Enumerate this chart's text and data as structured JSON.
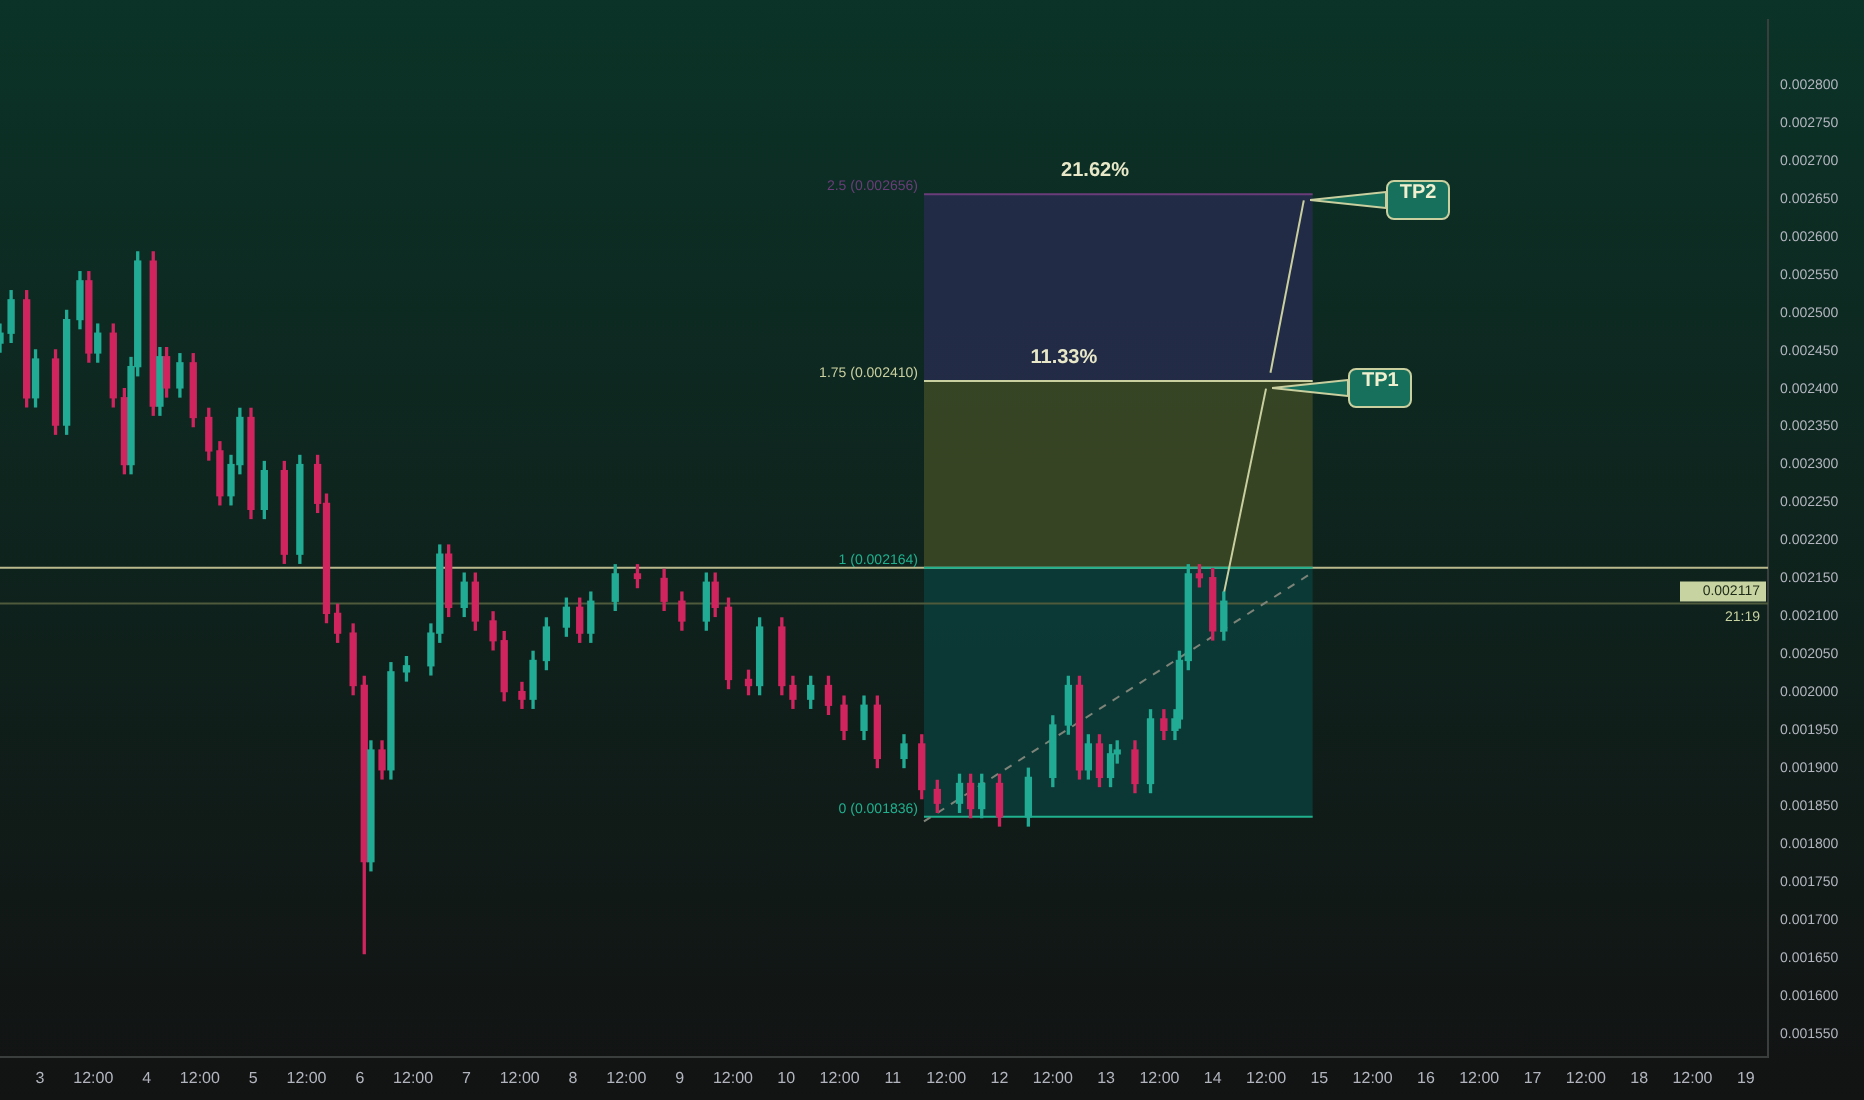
{
  "chart_data": {
    "type": "candlestick",
    "x": [
      "--07-02T15:00",
      "--07-02T17:30",
      "--07-02T21:00",
      "--07-02T23:00",
      "--07-03T03:30",
      "--07-03T06:00",
      "--07-03T09:00",
      "--07-03T11:00",
      "--07-03T13:00",
      "--07-03T16:30",
      "--07-03T19:00",
      "--07-03T20:30",
      "--07-03T22:00",
      "--07-04T01:30",
      "--07-04T03:00",
      "--07-04T04:30",
      "--07-04T07:30",
      "--07-04T10:30",
      "--07-04T14:00",
      "--07-04T16:30",
      "--07-04T19:00",
      "--07-04T21:00",
      "--07-04T23:30",
      "--07-05T02:30",
      "--07-05T07:00",
      "--07-05T10:30",
      "--07-05T14:30",
      "--07-05T16:30",
      "--07-05T19:00",
      "--07-05T22:30",
      "--07-06T01:00",
      "--07-06T02:30",
      "--07-06T05:00",
      "--07-06T07:00",
      "--07-06T10:30",
      "--07-06T16:00",
      "--07-06T18:00",
      "--07-06T20:00",
      "--07-06T23:30",
      "--07-07T02:00",
      "--07-07T06:00",
      "--07-07T08:30",
      "--07-07T12:30",
      "--07-07T15:00",
      "--07-07T18:00",
      "--07-07T22:30",
      "--07-08T01:30",
      "--07-08T04:00",
      "--07-08T09:30",
      "--07-08T14:30",
      "--07-08T20:30",
      "--07-09T00:30",
      "--07-09T06:00",
      "--07-09T08:00",
      "--07-09T11:00",
      "--07-09T15:30",
      "--07-09T18:00",
      "--07-09T23:00",
      "--07-10T01:30",
      "--07-10T05:30",
      "--07-10T09:30",
      "--07-10T13:00",
      "--07-10T17:30",
      "--07-10T20:30",
      "--07-11T02:30",
      "--07-11T06:30",
      "--07-11T10:00",
      "--07-11T15:00",
      "--07-11T17:30",
      "--07-11T20:00",
      "--07-12T00:00",
      "--07-12T06:30",
      "--07-12T12:00",
      "--07-12T15:30",
      "--07-12T18:00",
      "--07-12T20:00",
      "--07-12T22:30",
      "--07-13T01:00",
      "--07-13T02:30",
      "--07-13T06:30",
      "--07-13T10:00",
      "--07-13T13:00",
      "--07-13T15:30",
      "--07-13T16:30",
      "--07-13T18:30",
      "--07-13T21:00",
      "--07-14T00:00",
      "--07-14T02:30"
    ],
    "ohlc": [
      [
        0.00246,
        0.002485,
        0.002448,
        0.002473
      ],
      [
        0.002473,
        0.002529,
        0.002461,
        0.002517
      ],
      [
        0.002517,
        0.002529,
        0.002376,
        0.002388
      ],
      [
        0.002388,
        0.002451,
        0.002376,
        0.002439
      ],
      [
        0.002439,
        0.002451,
        0.00234,
        0.002352
      ],
      [
        0.002352,
        0.002503,
        0.00234,
        0.002491
      ],
      [
        0.002491,
        0.002554,
        0.002479,
        0.002542
      ],
      [
        0.002542,
        0.002554,
        0.002435,
        0.002447
      ],
      [
        0.002447,
        0.002485,
        0.002435,
        0.002473
      ],
      [
        0.002473,
        0.002485,
        0.002376,
        0.002388
      ],
      [
        0.002388,
        0.0024,
        0.002288,
        0.0023
      ],
      [
        0.0023,
        0.002441,
        0.002288,
        0.002429
      ],
      [
        0.002429,
        0.00258,
        0.002417,
        0.002568
      ],
      [
        0.002568,
        0.00258,
        0.002365,
        0.002377
      ],
      [
        0.002377,
        0.002454,
        0.002365,
        0.002442
      ],
      [
        0.002442,
        0.002454,
        0.002389,
        0.002401
      ],
      [
        0.002401,
        0.002446,
        0.002389,
        0.002434
      ],
      [
        0.002434,
        0.002446,
        0.00235,
        0.002362
      ],
      [
        0.002362,
        0.002374,
        0.002306,
        0.002318
      ],
      [
        0.002318,
        0.00233,
        0.002247,
        0.002259
      ],
      [
        0.002259,
        0.002312,
        0.002247,
        0.0023
      ],
      [
        0.0023,
        0.002374,
        0.002288,
        0.002362
      ],
      [
        0.002362,
        0.002374,
        0.002229,
        0.002241
      ],
      [
        0.002241,
        0.002304,
        0.002229,
        0.002292
      ],
      [
        0.002292,
        0.002304,
        0.00217,
        0.002182
      ],
      [
        0.002182,
        0.002312,
        0.00217,
        0.0023
      ],
      [
        0.0023,
        0.002312,
        0.002237,
        0.002249
      ],
      [
        0.002249,
        0.002261,
        0.002092,
        0.002104
      ],
      [
        0.002104,
        0.002116,
        0.002066,
        0.002078
      ],
      [
        0.002078,
        0.00209,
        0.001997,
        0.002009
      ],
      [
        0.002009,
        0.002021,
        0.001656,
        0.001777
      ],
      [
        0.001777,
        0.001936,
        0.001765,
        0.001924
      ],
      [
        0.001924,
        0.001936,
        0.001886,
        0.001898
      ],
      [
        0.001898,
        0.002039,
        0.001886,
        0.002027
      ],
      [
        0.002027,
        0.002047,
        0.002015,
        0.002035
      ],
      [
        0.002035,
        0.00209,
        0.002023,
        0.002078
      ],
      [
        0.002078,
        0.002194,
        0.002066,
        0.002182
      ],
      [
        0.002182,
        0.002194,
        0.0021,
        0.002112
      ],
      [
        0.002112,
        0.002157,
        0.0021,
        0.002145
      ],
      [
        0.002145,
        0.002157,
        0.002082,
        0.002094
      ],
      [
        0.002094,
        0.002106,
        0.002056,
        0.002068
      ],
      [
        0.002068,
        0.00208,
        0.001989,
        0.002001
      ],
      [
        0.002001,
        0.002013,
        0.001979,
        0.001991
      ],
      [
        0.001991,
        0.002054,
        0.001979,
        0.002042
      ],
      [
        0.002042,
        0.002098,
        0.00203,
        0.002086
      ],
      [
        0.002086,
        0.002124,
        0.002074,
        0.002112
      ],
      [
        0.002112,
        0.002124,
        0.002066,
        0.002078
      ],
      [
        0.002078,
        0.002132,
        0.002066,
        0.00212
      ],
      [
        0.00212,
        0.002168,
        0.002108,
        0.002156
      ],
      [
        0.002156,
        0.002168,
        0.002138,
        0.00215
      ],
      [
        0.00215,
        0.002162,
        0.002108,
        0.00212
      ],
      [
        0.00212,
        0.002132,
        0.002082,
        0.002094
      ],
      [
        0.002094,
        0.002157,
        0.002082,
        0.002145
      ],
      [
        0.002145,
        0.002157,
        0.0021,
        0.002112
      ],
      [
        0.002112,
        0.002124,
        0.002005,
        0.002017
      ],
      [
        0.002017,
        0.002029,
        0.001997,
        0.002009
      ],
      [
        0.002009,
        0.002098,
        0.001997,
        0.002086
      ],
      [
        0.002086,
        0.002098,
        0.001997,
        0.002009
      ],
      [
        0.002009,
        0.002021,
        0.001979,
        0.001991
      ],
      [
        0.001991,
        0.002021,
        0.001979,
        0.002009
      ],
      [
        0.002009,
        0.002021,
        0.001971,
        0.001983
      ],
      [
        0.001983,
        0.001995,
        0.001938,
        0.00195
      ],
      [
        0.00195,
        0.001995,
        0.001938,
        0.001983
      ],
      [
        0.001983,
        0.001995,
        0.001901,
        0.001913
      ],
      [
        0.001913,
        0.001944,
        0.001901,
        0.001932
      ],
      [
        0.001932,
        0.001944,
        0.00186,
        0.001872
      ],
      [
        0.001872,
        0.001884,
        0.001842,
        0.001854
      ],
      [
        0.001854,
        0.001892,
        0.001842,
        0.00188
      ],
      [
        0.00188,
        0.001892,
        0.001835,
        0.001847
      ],
      [
        0.001847,
        0.001892,
        0.001835,
        0.00188
      ],
      [
        0.00188,
        0.001892,
        0.001824,
        0.001836
      ],
      [
        0.001836,
        0.0019,
        0.001824,
        0.001888
      ],
      [
        0.001888,
        0.001969,
        0.001876,
        0.001957
      ],
      [
        0.001957,
        0.002021,
        0.001945,
        0.002009
      ],
      [
        0.002009,
        0.002021,
        0.001886,
        0.001898
      ],
      [
        0.001898,
        0.001944,
        0.001886,
        0.001932
      ],
      [
        0.001932,
        0.001944,
        0.001876,
        0.001888
      ],
      [
        0.001888,
        0.001931,
        0.001876,
        0.001919
      ],
      [
        0.001919,
        0.001936,
        0.001907,
        0.001924
      ],
      [
        0.001924,
        0.001936,
        0.001868,
        0.00188
      ],
      [
        0.00188,
        0.001977,
        0.001868,
        0.001965
      ],
      [
        0.001965,
        0.001977,
        0.001938,
        0.00195
      ],
      [
        0.00195,
        0.001977,
        0.001938,
        0.001965
      ],
      [
        0.001965,
        0.002054,
        0.001953,
        0.002042
      ],
      [
        0.002042,
        0.002168,
        0.00203,
        0.002156
      ],
      [
        0.002156,
        0.002168,
        0.002139,
        0.002151
      ],
      [
        0.002151,
        0.002163,
        0.002069,
        0.002081
      ],
      [
        0.002081,
        0.002132,
        0.002069,
        0.00212
      ]
    ],
    "series": [
      {
        "type": "line",
        "x": [
          "--07-11T07:00",
          "--07-14T22:30"
        ],
        "values": [
          0.00183,
          0.002158
        ],
        "color": "#7d8378",
        "line_style": "dashed"
      },
      {
        "type": "line",
        "x": [
          "--07-14T02:30",
          "--07-14T12:00"
        ],
        "values": [
          0.00213,
          0.0024
        ],
        "color": "#c9cf9f",
        "line_style": "solid"
      },
      {
        "type": "line",
        "x": [
          "--07-14T13:00",
          "--07-14T20:30"
        ],
        "values": [
          0.002421,
          0.002648
        ],
        "color": "#c9cf9f",
        "line_style": "solid"
      }
    ],
    "xlim": [
      "--07-02T15:00",
      "--07-19T05:00"
    ],
    "xticks": [
      {
        "value": "--07-03",
        "label": "3"
      },
      {
        "value": "--07-03T12:00",
        "label": "12:00"
      },
      {
        "value": "--07-04",
        "label": "4"
      },
      {
        "value": "--07-04T12:00",
        "label": "12:00"
      },
      {
        "value": "--07-05",
        "label": "5"
      },
      {
        "value": "--07-05T12:00",
        "label": "12:00"
      },
      {
        "value": "--07-06",
        "label": "6"
      },
      {
        "value": "--07-06T12:00",
        "label": "12:00"
      },
      {
        "value": "--07-07",
        "label": "7"
      },
      {
        "value": "--07-07T12:00",
        "label": "12:00"
      },
      {
        "value": "--07-08",
        "label": "8"
      },
      {
        "value": "--07-08T12:00",
        "label": "12:00"
      },
      {
        "value": "--07-09",
        "label": "9"
      },
      {
        "value": "--07-09T12:00",
        "label": "12:00"
      },
      {
        "value": "--07-10",
        "label": "10"
      },
      {
        "value": "--07-10T12:00",
        "label": "12:00"
      },
      {
        "value": "--07-11",
        "label": "11"
      },
      {
        "value": "--07-11T12:00",
        "label": "12:00"
      },
      {
        "value": "--07-12",
        "label": "12"
      },
      {
        "value": "--07-12T12:00",
        "label": "12:00"
      },
      {
        "value": "--07-13",
        "label": "13"
      },
      {
        "value": "--07-13T12:00",
        "label": "12:00"
      },
      {
        "value": "--07-14",
        "label": "14"
      },
      {
        "value": "--07-14T12:00",
        "label": "12:00"
      },
      {
        "value": "--07-15",
        "label": "15"
      },
      {
        "value": "--07-15T12:00",
        "label": "12:00"
      },
      {
        "value": "--07-16",
        "label": "16"
      },
      {
        "value": "--07-16T12:00",
        "label": "12:00"
      },
      {
        "value": "--07-17",
        "label": "17"
      },
      {
        "value": "--07-17T12:00",
        "label": "12:00"
      },
      {
        "value": "--07-18",
        "label": "18"
      },
      {
        "value": "--07-18T12:00",
        "label": "12:00"
      },
      {
        "value": "--07-19",
        "label": "19"
      }
    ],
    "ylim": [
      0.00152,
      0.002885
    ],
    "yticks": [
      {
        "value": 0.00155,
        "label": "0.001550"
      },
      {
        "value": 0.0016,
        "label": "0.001600"
      },
      {
        "value": 0.00165,
        "label": "0.001650"
      },
      {
        "value": 0.0017,
        "label": "0.001700"
      },
      {
        "value": 0.00175,
        "label": "0.001750"
      },
      {
        "value": 0.0018,
        "label": "0.001800"
      },
      {
        "value": 0.00185,
        "label": "0.001850"
      },
      {
        "value": 0.0019,
        "label": "0.001900"
      },
      {
        "value": 0.00195,
        "label": "0.001950"
      },
      {
        "value": 0.002,
        "label": "0.002000"
      },
      {
        "value": 0.00205,
        "label": "0.002050"
      },
      {
        "value": 0.0021,
        "label": "0.002100"
      },
      {
        "value": 0.00215,
        "label": "0.002150"
      },
      {
        "value": 0.0022,
        "label": "0.002200"
      },
      {
        "value": 0.00225,
        "label": "0.002250"
      },
      {
        "value": 0.0023,
        "label": "0.002300"
      },
      {
        "value": 0.00235,
        "label": "0.002350"
      },
      {
        "value": 0.0024,
        "label": "0.002400"
      },
      {
        "value": 0.00245,
        "label": "0.002450"
      },
      {
        "value": 0.0025,
        "label": "0.002500"
      },
      {
        "value": 0.00255,
        "label": "0.002550"
      },
      {
        "value": 0.0026,
        "label": "0.002600"
      },
      {
        "value": 0.00265,
        "label": "0.002650"
      },
      {
        "value": 0.0027,
        "label": "0.002700"
      },
      {
        "value": 0.00275,
        "label": "0.002750"
      },
      {
        "value": 0.0028,
        "label": "0.002800"
      }
    ],
    "bands": [
      {
        "axis": "y",
        "from": 0.001836,
        "to": 0.002164,
        "color": "#0b3d3a"
      },
      {
        "axis": "y",
        "from": 0.002164,
        "to": 0.00241,
        "color": "#3d4a26"
      },
      {
        "axis": "y",
        "from": 0.00241,
        "to": 0.002656,
        "color": "#272b4c"
      }
    ],
    "ref_lines": [
      {
        "axis": "y",
        "value": 0.002164,
        "color": "#b9b98c"
      },
      {
        "axis": "y",
        "value": 0.001836,
        "label": "0 (0.001836)",
        "color": "#1fb08e"
      },
      {
        "axis": "y",
        "value": 0.002164,
        "label": "1 (0.002164)",
        "color": "#1fb08e"
      },
      {
        "axis": "y",
        "value": 0.00241,
        "label": "1.75 (0.002410)",
        "color": "#c9cf9f"
      },
      {
        "axis": "y",
        "value": 0.002656,
        "label": "2.5 (0.002656)",
        "color": "#6a3d7a"
      },
      {
        "axis": "y",
        "value": 0.002117,
        "label": "0.002117",
        "color": "#4f5a3c"
      }
    ],
    "annotations": [
      {
        "text": "11.33%",
        "x": "--07-12T14:30",
        "y": 0.00241
      },
      {
        "text": "21.62%",
        "x": "--07-12T21:30",
        "y": 0.002656
      },
      {
        "text": "TP1",
        "x": "--07-14T12:00",
        "y": 0.0024
      },
      {
        "text": "TP2",
        "x": "--07-14T20:30",
        "y": 0.002648
      },
      "21:19"
    ],
    "grid": false,
    "legend": false
  }
}
